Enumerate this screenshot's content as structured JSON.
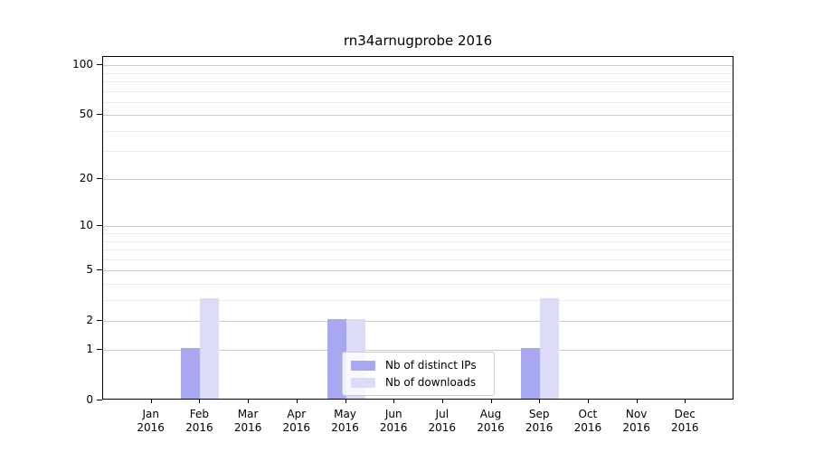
{
  "chart_data": {
    "type": "bar",
    "title": "rn34arnugprobe 2016",
    "categories": [
      "Jan 2016",
      "Feb 2016",
      "Mar 2016",
      "Apr 2016",
      "May 2016",
      "Jun 2016",
      "Jul 2016",
      "Aug 2016",
      "Sep 2016",
      "Oct 2016",
      "Nov 2016",
      "Dec 2016"
    ],
    "month_labels": [
      "Jan",
      "Feb",
      "Mar",
      "Apr",
      "May",
      "Jun",
      "Jul",
      "Aug",
      "Sep",
      "Oct",
      "Nov",
      "Dec"
    ],
    "year_label": "2016",
    "series": [
      {
        "name": "Nb of distinct IPs",
        "color": "#a8a8f2",
        "values": [
          0,
          1,
          0,
          0,
          2,
          0,
          0,
          0,
          1,
          0,
          0,
          0
        ]
      },
      {
        "name": "Nb of downloads",
        "color": "#dcdcf8",
        "values": [
          0,
          3,
          0,
          0,
          2,
          0,
          0,
          0,
          3,
          0,
          0,
          0
        ]
      }
    ],
    "xlabel": "",
    "ylabel": "",
    "yscale": "log1p",
    "yticks": [
      0,
      1,
      2,
      5,
      10,
      20,
      50,
      100
    ],
    "minor_yticks": [
      3,
      4,
      6,
      7,
      8,
      9,
      30,
      40,
      60,
      70,
      80,
      90
    ],
    "ylim": [
      0,
      112
    ],
    "grid": "horizontal",
    "legend_position": "lower center",
    "colors": {
      "major_grid": "#cccccc",
      "minor_grid": "#ebebeb",
      "spine": "#000000",
      "background": "#ffffff"
    }
  }
}
